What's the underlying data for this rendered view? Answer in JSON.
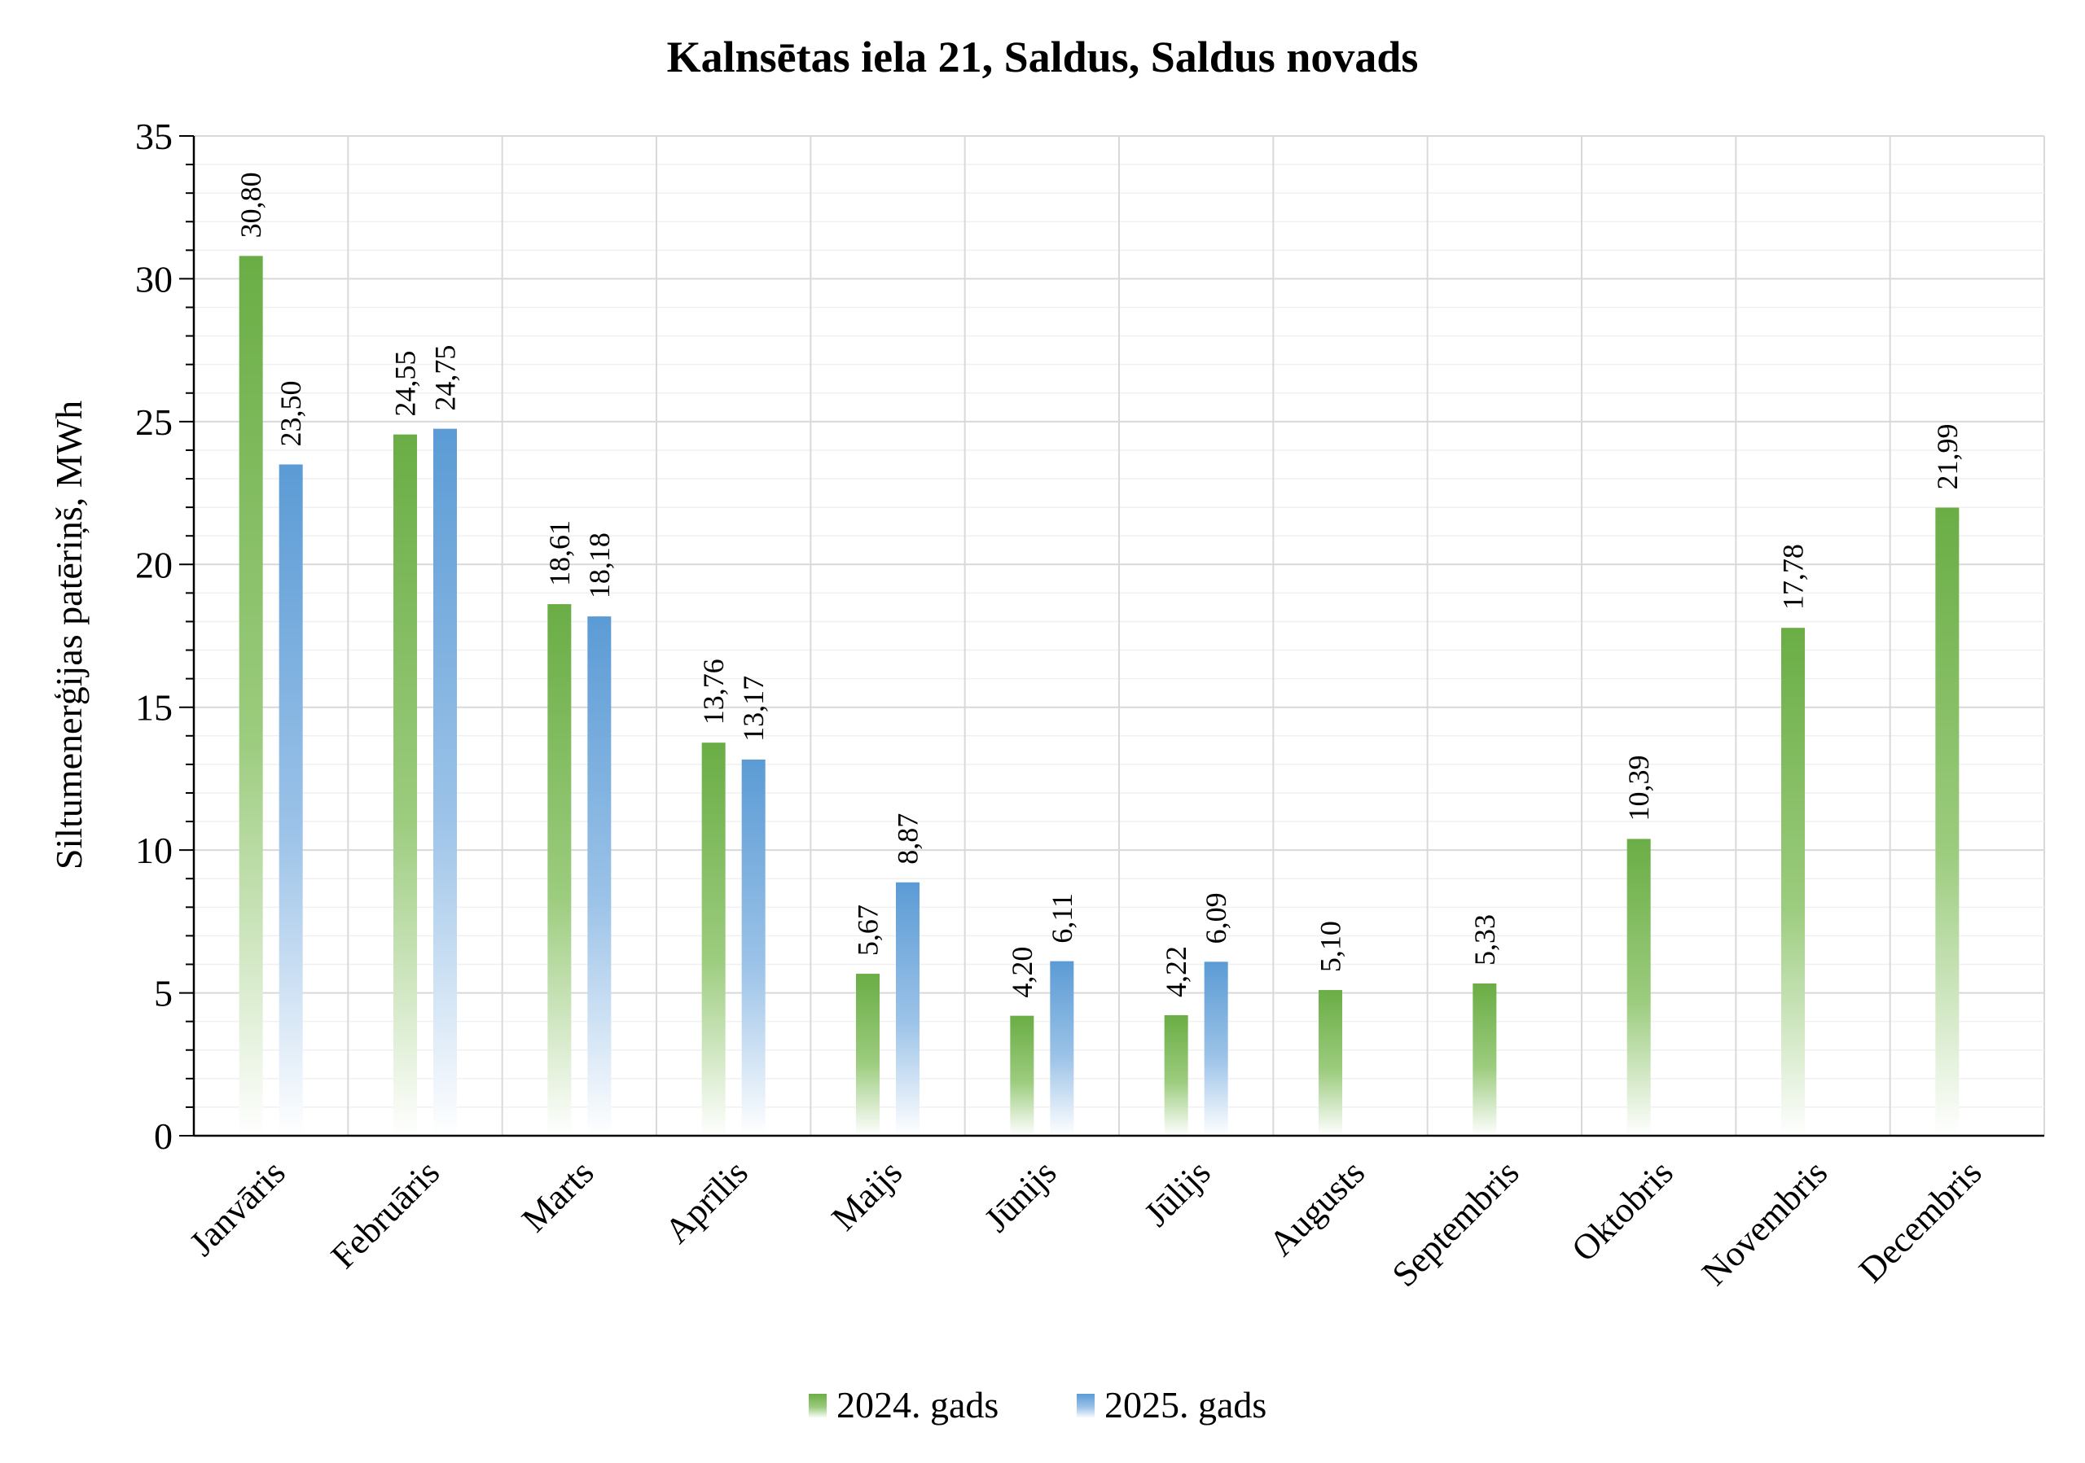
{
  "chart_data": {
    "type": "bar",
    "title": "Kalnsētas iela 21, Saldus, Saldus novads",
    "ylabel": "Siltumenerģijas patēriņš, MWh",
    "xlabel": "",
    "ylim": [
      0,
      35
    ],
    "yticks": [
      0,
      5,
      10,
      15,
      20,
      25,
      30,
      35
    ],
    "grid": true,
    "legend_position": "bottom",
    "categories": [
      "Janvāris",
      "Februāris",
      "Marts",
      "Aprīlis",
      "Maijs",
      "Jūnijs",
      "Jūlijs",
      "Augusts",
      "Septembris",
      "Oktobris",
      "Novembris",
      "Decembris"
    ],
    "series": [
      {
        "name": "2024. gads",
        "color": "#6aad45",
        "values": [
          30.8,
          24.55,
          18.61,
          13.76,
          5.67,
          4.2,
          4.22,
          5.1,
          5.33,
          10.39,
          17.78,
          21.99
        ],
        "labels": [
          "30,80",
          "24,55",
          "18,61",
          "13,76",
          "5,67",
          "4,20",
          "4,22",
          "5,10",
          "5,33",
          "10,39",
          "17,78",
          "21,99"
        ]
      },
      {
        "name": "2025. gads",
        "color": "#5b9bd5",
        "values": [
          23.5,
          24.75,
          18.18,
          13.17,
          8.87,
          6.11,
          6.09,
          null,
          null,
          null,
          null,
          null
        ],
        "labels": [
          "23,50",
          "24,75",
          "18,18",
          "13,17",
          "8,87",
          "6,11",
          "6,09",
          null,
          null,
          null,
          null,
          null
        ]
      }
    ]
  }
}
